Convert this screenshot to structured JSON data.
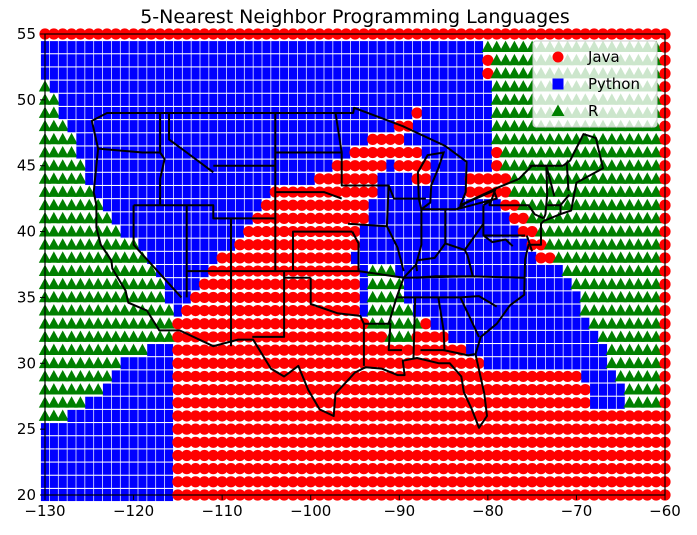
{
  "chart_data": {
    "type": "scatter",
    "title": "5-Nearest Neighbor Programming Languages",
    "xlabel": "",
    "ylabel": "",
    "xlim": [
      -130,
      -60
    ],
    "ylim": [
      20,
      55
    ],
    "x_ticks": [
      -130,
      -120,
      -110,
      -100,
      -90,
      -80,
      -70,
      -60
    ],
    "y_ticks": [
      20,
      25,
      30,
      35,
      40,
      45,
      50,
      55
    ],
    "grid": false,
    "legend_position": "upper-right",
    "grid_spacing": 1,
    "series": [
      {
        "name": "Java",
        "marker": "circle",
        "color": "#ff0000"
      },
      {
        "name": "Python",
        "marker": "square",
        "color": "#0000ff"
      },
      {
        "name": "R",
        "marker": "triangle",
        "color": "#008000"
      }
    ],
    "regions": {
      "Python": [
        [
          [
            -130,
            20
          ],
          [
            -115,
            20
          ],
          [
            -115,
            33
          ],
          [
            -110,
            38
          ],
          [
            -104,
            43
          ],
          [
            -99,
            44
          ],
          [
            -93,
            47
          ],
          [
            -88,
            49
          ],
          [
            -80.5,
            55
          ],
          [
            -130,
            55
          ]
        ],
        [
          [
            -94,
            33
          ],
          [
            -88,
            34
          ],
          [
            -82,
            31
          ],
          [
            -80,
            30
          ],
          [
            -76,
            30
          ],
          [
            -70,
            29.5
          ],
          [
            -68,
            27
          ],
          [
            -64,
            27
          ],
          [
            -64,
            31
          ],
          [
            -69,
            36
          ],
          [
            -74,
            38
          ],
          [
            -78,
            42
          ],
          [
            -80,
            44
          ],
          [
            -79,
            49
          ],
          [
            -81,
            55
          ],
          [
            -85,
            52
          ],
          [
            -88,
            48
          ],
          [
            -92,
            44
          ],
          [
            -95,
            38
          ]
        ]
      ],
      "R": [
        [
          [
            -130,
            25
          ],
          [
            -130,
            52
          ],
          [
            -125,
            44
          ],
          [
            -121,
            40
          ],
          [
            -117,
            37
          ],
          [
            -115,
            32
          ],
          [
            -121,
            30
          ],
          [
            -125,
            27
          ]
        ],
        [
          [
            -80.5,
            55
          ],
          [
            -60,
            55
          ],
          [
            -60,
            27
          ],
          [
            -64,
            27
          ],
          [
            -69,
            34
          ],
          [
            -73,
            39
          ],
          [
            -77,
            43
          ],
          [
            -79,
            47
          ],
          [
            -79,
            50
          ]
        ],
        [
          [
            -94,
            38
          ],
          [
            -91,
            38
          ],
          [
            -89,
            35
          ],
          [
            -87,
            33
          ],
          [
            -90,
            31
          ],
          [
            -93,
            33
          ]
        ]
      ],
      "Java_cutouts": [
        [
          [
            -97,
            47
          ],
          [
            -89,
            47
          ],
          [
            -87,
            46
          ],
          [
            -86,
            44
          ],
          [
            -88,
            44
          ],
          [
            -90,
            45
          ],
          [
            -92,
            46
          ]
        ],
        [
          [
            -82,
            45
          ],
          [
            -79,
            45
          ],
          [
            -79,
            43
          ],
          [
            -82,
            43
          ]
        ]
      ]
    },
    "outline": {
      "us_border": [
        [
          -124.7,
          48.4
        ],
        [
          -123.0,
          49.0
        ],
        [
          -95.2,
          49.0
        ],
        [
          -95.1,
          49.4
        ],
        [
          -89.6,
          48.0
        ],
        [
          -84.8,
          46.5
        ],
        [
          -82.4,
          45.3
        ],
        [
          -82.5,
          43.0
        ],
        [
          -83.1,
          42.0
        ],
        [
          -79.0,
          43.3
        ],
        [
          -76.5,
          44.0
        ],
        [
          -75.0,
          45.0
        ],
        [
          -71.5,
          45.0
        ],
        [
          -70.7,
          45.4
        ],
        [
          -69.2,
          47.4
        ],
        [
          -67.8,
          47.1
        ],
        [
          -67.0,
          44.8
        ],
        [
          -70.0,
          43.7
        ],
        [
          -70.6,
          41.6
        ],
        [
          -71.9,
          41.3
        ],
        [
          -73.7,
          40.8
        ],
        [
          -74.0,
          40.6
        ],
        [
          -74.0,
          39.0
        ],
        [
          -75.4,
          39.0
        ],
        [
          -75.8,
          37.9
        ],
        [
          -75.9,
          35.2
        ],
        [
          -77.5,
          34.4
        ],
        [
          -79.0,
          33.0
        ],
        [
          -80.8,
          32.0
        ],
        [
          -81.4,
          30.7
        ],
        [
          -80.4,
          27.7
        ],
        [
          -80.1,
          26.0
        ],
        [
          -81.0,
          25.1
        ],
        [
          -81.8,
          26.5
        ],
        [
          -82.7,
          27.8
        ],
        [
          -83.0,
          29.0
        ],
        [
          -84.3,
          30.0
        ],
        [
          -85.5,
          30.0
        ],
        [
          -88.0,
          30.4
        ],
        [
          -89.6,
          30.2
        ],
        [
          -89.4,
          29.1
        ],
        [
          -90.2,
          29.1
        ],
        [
          -92.0,
          29.6
        ],
        [
          -93.8,
          29.7
        ],
        [
          -95.0,
          29.3
        ],
        [
          -97.2,
          27.7
        ],
        [
          -97.4,
          26.0
        ],
        [
          -99.0,
          26.5
        ],
        [
          -100.3,
          28.0
        ],
        [
          -101.4,
          29.8
        ],
        [
          -103.0,
          29.0
        ],
        [
          -104.5,
          29.6
        ],
        [
          -106.5,
          31.8
        ],
        [
          -108.2,
          31.8
        ],
        [
          -111.0,
          31.3
        ],
        [
          -114.8,
          32.5
        ],
        [
          -117.1,
          32.5
        ],
        [
          -118.5,
          34.0
        ],
        [
          -120.6,
          34.6
        ],
        [
          -120.9,
          35.5
        ],
        [
          -122.4,
          37.2
        ],
        [
          -122.5,
          37.8
        ],
        [
          -123.7,
          39.0
        ],
        [
          -124.2,
          40.3
        ],
        [
          -124.2,
          42.0
        ],
        [
          -124.5,
          43.0
        ],
        [
          -124.0,
          46.3
        ],
        [
          -124.7,
          48.4
        ]
      ],
      "lake_michigan": [
        [
          -87.5,
          41.7
        ],
        [
          -87.8,
          42.5
        ],
        [
          -87.9,
          44.5
        ],
        [
          -86.8,
          45.8
        ],
        [
          -85.0,
          46.0
        ],
        [
          -85.6,
          44.8
        ],
        [
          -86.4,
          43.5
        ],
        [
          -86.5,
          42.2
        ],
        [
          -87.5,
          41.7
        ]
      ],
      "lake_erie": [
        [
          -83.5,
          41.7
        ],
        [
          -79.0,
          42.5
        ],
        [
          -79.3,
          43.1
        ],
        [
          -82.4,
          42.2
        ],
        [
          -83.5,
          41.7
        ]
      ],
      "state_lines": [
        [
          [
            -120.0,
            42.0
          ],
          [
            -111.0,
            42.0
          ],
          [
            -111.0,
            41.0
          ],
          [
            -104.0,
            41.0
          ]
        ],
        [
          [
            -120.0,
            42.0
          ],
          [
            -120.0,
            39.0
          ],
          [
            -114.6,
            35.0
          ]
        ],
        [
          [
            -117.0,
            49.0
          ],
          [
            -117.0,
            46.0
          ],
          [
            -116.5,
            45.5
          ],
          [
            -117.0,
            44.0
          ],
          [
            -117.0,
            42.0
          ]
        ],
        [
          [
            -124.0,
            46.3
          ],
          [
            -119.0,
            46.0
          ],
          [
            -117.0,
            46.0
          ]
        ],
        [
          [
            -116.0,
            49.0
          ],
          [
            -116.0,
            47.0
          ],
          [
            -114.0,
            46.0
          ],
          [
            -111.0,
            44.5
          ]
        ],
        [
          [
            -111.0,
            45.0
          ],
          [
            -104.0,
            45.0
          ]
        ],
        [
          [
            -104.0,
            49.0
          ],
          [
            -104.0,
            45.0
          ],
          [
            -104.0,
            41.0
          ],
          [
            -104.0,
            37.0
          ]
        ],
        [
          [
            -114.0,
            42.0
          ],
          [
            -114.0,
            37.0
          ],
          [
            -109.0,
            37.0
          ],
          [
            -103.0,
            37.0
          ],
          [
            -94.6,
            37.0
          ],
          [
            -89.5,
            36.5
          ],
          [
            -81.7,
            36.6
          ],
          [
            -75.9,
            36.5
          ]
        ],
        [
          [
            -109.0,
            41.0
          ],
          [
            -109.0,
            31.3
          ]
        ],
        [
          [
            -103.0,
            37.0
          ],
          [
            -103.0,
            32.0
          ],
          [
            -106.6,
            32.0
          ]
        ],
        [
          [
            -114.0,
            37.0
          ],
          [
            -114.0,
            35.0
          ]
        ],
        [
          [
            -102.0,
            37.0
          ],
          [
            -102.0,
            40.0
          ],
          [
            -95.3,
            40.0
          ]
        ],
        [
          [
            -104.0,
            43.0
          ],
          [
            -98.5,
            43.0
          ],
          [
            -96.5,
            42.5
          ]
        ],
        [
          [
            -104.0,
            46.0
          ],
          [
            -96.5,
            46.0
          ]
        ],
        [
          [
            -97.2,
            49.0
          ],
          [
            -96.5,
            46.0
          ],
          [
            -96.5,
            43.5
          ],
          [
            -91.2,
            43.5
          ],
          [
            -90.6,
            42.5
          ],
          [
            -87.0,
            42.5
          ]
        ],
        [
          [
            -100.0,
            36.5
          ],
          [
            -100.0,
            34.5
          ],
          [
            -97.0,
            33.8
          ],
          [
            -94.4,
            33.6
          ],
          [
            -94.0,
            33.0
          ],
          [
            -94.0,
            29.8
          ]
        ],
        [
          [
            -103.0,
            36.5
          ],
          [
            -100.0,
            36.5
          ]
        ],
        [
          [
            -94.6,
            37.0
          ],
          [
            -94.6,
            39.1
          ],
          [
            -95.3,
            40.0
          ]
        ],
        [
          [
            -94.0,
            33.0
          ],
          [
            -91.0,
            33.0
          ],
          [
            -91.2,
            31.0
          ],
          [
            -89.7,
            31.0
          ]
        ],
        [
          [
            -91.2,
            43.5
          ],
          [
            -91.4,
            40.4
          ],
          [
            -90.2,
            38.8
          ],
          [
            -89.5,
            37.0
          ]
        ],
        [
          [
            -91.4,
            40.4
          ],
          [
            -95.8,
            40.6
          ]
        ],
        [
          [
            -89.5,
            36.5
          ],
          [
            -90.3,
            35.0
          ],
          [
            -91.2,
            33.0
          ]
        ],
        [
          [
            -88.2,
            35.0
          ],
          [
            -88.4,
            30.4
          ]
        ],
        [
          [
            -90.3,
            35.0
          ],
          [
            -84.3,
            35.0
          ],
          [
            -83.1,
            35.0
          ],
          [
            -81.0,
            35.1
          ],
          [
            -79.0,
            34.3
          ]
        ],
        [
          [
            -85.6,
            35.0
          ],
          [
            -85.0,
            32.5
          ],
          [
            -84.9,
            31.0
          ],
          [
            -85.0,
            31.0
          ],
          [
            -87.6,
            31.0
          ]
        ],
        [
          [
            -85.0,
            31.0
          ],
          [
            -82.2,
            30.6
          ],
          [
            -81.5,
            30.7
          ]
        ],
        [
          [
            -83.1,
            35.0
          ],
          [
            -81.0,
            32.0
          ]
        ],
        [
          [
            -87.5,
            41.7
          ],
          [
            -87.5,
            39.0
          ],
          [
            -88.1,
            37.5
          ],
          [
            -88.0,
            37.0
          ]
        ],
        [
          [
            -87.5,
            41.7
          ],
          [
            -84.8,
            41.7
          ],
          [
            -83.5,
            41.7
          ]
        ],
        [
          [
            -84.8,
            41.7
          ],
          [
            -84.8,
            39.1
          ],
          [
            -86.0,
            38.0
          ],
          [
            -88.1,
            37.8
          ]
        ],
        [
          [
            -84.8,
            39.1
          ],
          [
            -82.6,
            38.6
          ],
          [
            -80.5,
            40.6
          ],
          [
            -80.5,
            42.0
          ]
        ],
        [
          [
            -89.5,
            36.5
          ],
          [
            -88.1,
            37.5
          ]
        ],
        [
          [
            -82.6,
            38.6
          ],
          [
            -82.3,
            38.2
          ],
          [
            -81.7,
            36.6
          ],
          [
            -83.7,
            36.6
          ],
          [
            -86.0,
            36.6
          ],
          [
            -88.1,
            36.5
          ]
        ],
        [
          [
            -80.5,
            40.6
          ],
          [
            -80.5,
            39.7
          ],
          [
            -77.7,
            39.7
          ],
          [
            -75.8,
            39.7
          ]
        ],
        [
          [
            -80.5,
            39.7
          ],
          [
            -79.5,
            39.2
          ],
          [
            -78.0,
            39.4
          ],
          [
            -77.2,
            38.9
          ]
        ],
        [
          [
            -80.5,
            42.0
          ],
          [
            -79.8,
            42.3
          ],
          [
            -79.8,
            42.0
          ],
          [
            -75.4,
            42.0
          ],
          [
            -74.7,
            41.3
          ],
          [
            -73.7,
            41.0
          ]
        ],
        [
          [
            -79.8,
            42.0
          ],
          [
            -79.1,
            43.3
          ]
        ],
        [
          [
            -75.3,
            45.0
          ],
          [
            -73.4,
            45.0
          ],
          [
            -73.3,
            42.8
          ],
          [
            -73.5,
            41.3
          ],
          [
            -73.7,
            41.0
          ]
        ],
        [
          [
            -73.4,
            45.0
          ],
          [
            -72.5,
            42.7
          ]
        ],
        [
          [
            -71.1,
            45.3
          ],
          [
            -70.9,
            43.1
          ]
        ],
        [
          [
            -73.3,
            42.0
          ],
          [
            -71.8,
            42.0
          ],
          [
            -71.8,
            41.3
          ]
        ],
        [
          [
            -71.8,
            42.0
          ],
          [
            -70.8,
            42.8
          ]
        ],
        [
          [
            -75.6,
            39.7
          ],
          [
            -75.0,
            38.5
          ]
        ],
        [
          [
            -83.7,
            36.6
          ],
          [
            -86.0,
            36.6
          ]
        ]
      ]
    }
  }
}
